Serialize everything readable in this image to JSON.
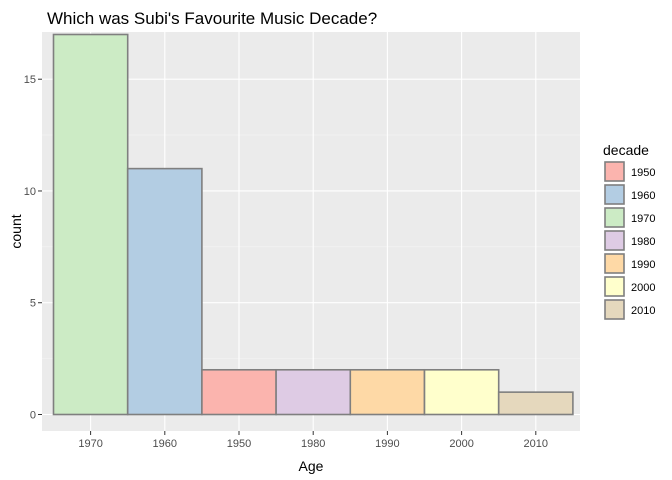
{
  "chart_data": {
    "type": "bar",
    "title": "Which was Subi's Favourite Music Decade?",
    "xlabel": "Age",
    "ylabel": "count",
    "categories": [
      "1970",
      "1960",
      "1950",
      "1980",
      "1990",
      "2000",
      "2010"
    ],
    "values": [
      17,
      11,
      2,
      2,
      2,
      2,
      1
    ],
    "bar_decade": [
      "1970",
      "1960",
      "1950",
      "1980",
      "1990",
      "2000",
      "2010"
    ],
    "yticks": [
      0,
      5,
      10,
      15
    ],
    "ylim": [
      0,
      17.85
    ],
    "grid": true,
    "legend": {
      "title": "decade",
      "position": "right",
      "entries": [
        {
          "label": "1950",
          "color": "#fbb4ae"
        },
        {
          "label": "1960",
          "color": "#b3cde3"
        },
        {
          "label": "1970",
          "color": "#ccebc5"
        },
        {
          "label": "1980",
          "color": "#decbe4"
        },
        {
          "label": "1990",
          "color": "#fed9a6"
        },
        {
          "label": "2000",
          "color": "#ffffcc"
        },
        {
          "label": "2010",
          "color": "#e5d8bd"
        }
      ]
    },
    "colors": {
      "panel_background": "#ebebeb",
      "bar_outline": "#7f7f7f"
    }
  }
}
